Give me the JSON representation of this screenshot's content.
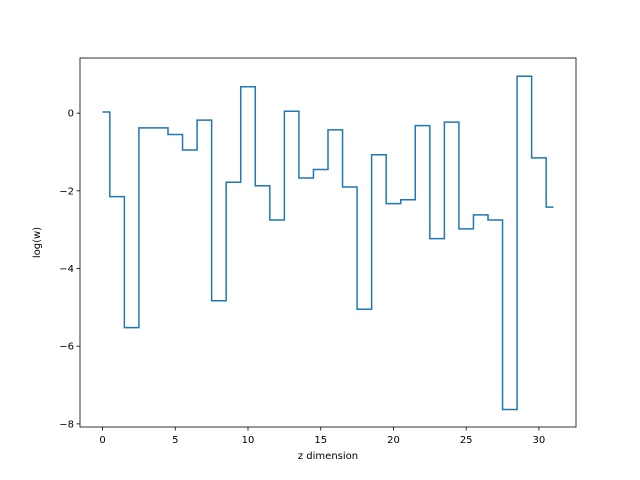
{
  "chart_data": {
    "type": "line",
    "step": "mid",
    "title": "",
    "xlabel": "z dimension",
    "ylabel": "log(w)",
    "xlim": [
      -1.55,
      32.55
    ],
    "ylim": [
      -8.08,
      1.42
    ],
    "xticks": [
      0,
      5,
      10,
      15,
      20,
      25,
      30
    ],
    "yticks": [
      0,
      -2,
      -4,
      -6,
      -8
    ],
    "grid": false,
    "series": [
      {
        "color": "#1f77b4",
        "x": [
          0,
          1,
          2,
          3,
          4,
          5,
          6,
          7,
          8,
          9,
          10,
          11,
          12,
          13,
          14,
          15,
          16,
          17,
          18,
          19,
          20,
          21,
          22,
          23,
          24,
          25,
          26,
          27,
          28,
          29,
          30,
          31
        ],
        "values": [
          0.03,
          -2.15,
          -5.52,
          -0.38,
          -0.38,
          -0.55,
          -0.95,
          -0.18,
          -4.83,
          -1.78,
          0.68,
          -1.87,
          -2.75,
          0.05,
          -1.67,
          -1.45,
          -0.43,
          -1.9,
          -5.05,
          -1.07,
          -2.33,
          -2.23,
          -0.32,
          -3.23,
          -0.23,
          -2.98,
          -2.62,
          -2.75,
          -7.63,
          0.95,
          -1.15,
          -2.42
        ]
      }
    ]
  }
}
